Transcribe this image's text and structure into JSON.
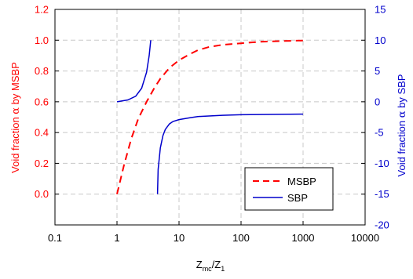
{
  "chart_data": {
    "type": "line",
    "title": "",
    "x_axis": {
      "label_main": "Z",
      "label_sub1": "mc",
      "label_sep": "/Z",
      "label_sub2": "1",
      "scale": "log",
      "range": [
        0.1,
        10000
      ],
      "ticks": [
        "0.1",
        "1",
        "10",
        "100",
        "1000",
        "10000"
      ]
    },
    "y_left": {
      "label_pre": "Void fraction ",
      "label_symbol": "α",
      "label_post": " by MSBP",
      "range": [
        -0.2,
        1.2
      ],
      "ticks": [
        "0.0",
        "0.2",
        "0.4",
        "0.6",
        "0.8",
        "1.0",
        "1.2"
      ],
      "color": "#ff0000"
    },
    "y_right": {
      "label_pre": "Void fraction ",
      "label_symbol": "α",
      "label_post": " by SBP",
      "range": [
        -20,
        15
      ],
      "ticks": [
        "-20",
        "-15",
        "-10",
        "-5",
        "0",
        "5",
        "10",
        "15"
      ],
      "color": "#0000cc"
    },
    "grid": true,
    "legend_position": "bottom-right",
    "series": [
      {
        "name": "MSBP",
        "axis": "left",
        "color": "#ff0000",
        "style": "dashed",
        "x": [
          1,
          1.3,
          1.7,
          2.2,
          3,
          4,
          5,
          7,
          10,
          15,
          20,
          30,
          50,
          100,
          200,
          500,
          1000
        ],
        "y": [
          0,
          0.19,
          0.36,
          0.49,
          0.6,
          0.69,
          0.75,
          0.82,
          0.87,
          0.91,
          0.935,
          0.955,
          0.97,
          0.98,
          0.99,
          0.995,
          0.998
        ]
      },
      {
        "name": "SBP",
        "axis": "right",
        "segments": [
          {
            "x": [
              1,
              1.5,
              2,
              2.5,
              3,
              3.3,
              3.5
            ],
            "y": [
              0,
              0.3,
              0.9,
              2.2,
              4.8,
              7.5,
              10
            ]
          },
          {
            "x": [
              4.5,
              4.6,
              5,
              5.5,
              6,
              7,
              8,
              10,
              15,
              20,
              50,
              100,
              1000
            ],
            "y": [
              -15,
              -11,
              -7.5,
              -5.5,
              -4.5,
              -3.6,
              -3.2,
              -2.9,
              -2.6,
              -2.4,
              -2.2,
              -2.1,
              -2.0
            ]
          }
        ],
        "color": "#0000cc",
        "style": "solid"
      }
    ]
  }
}
